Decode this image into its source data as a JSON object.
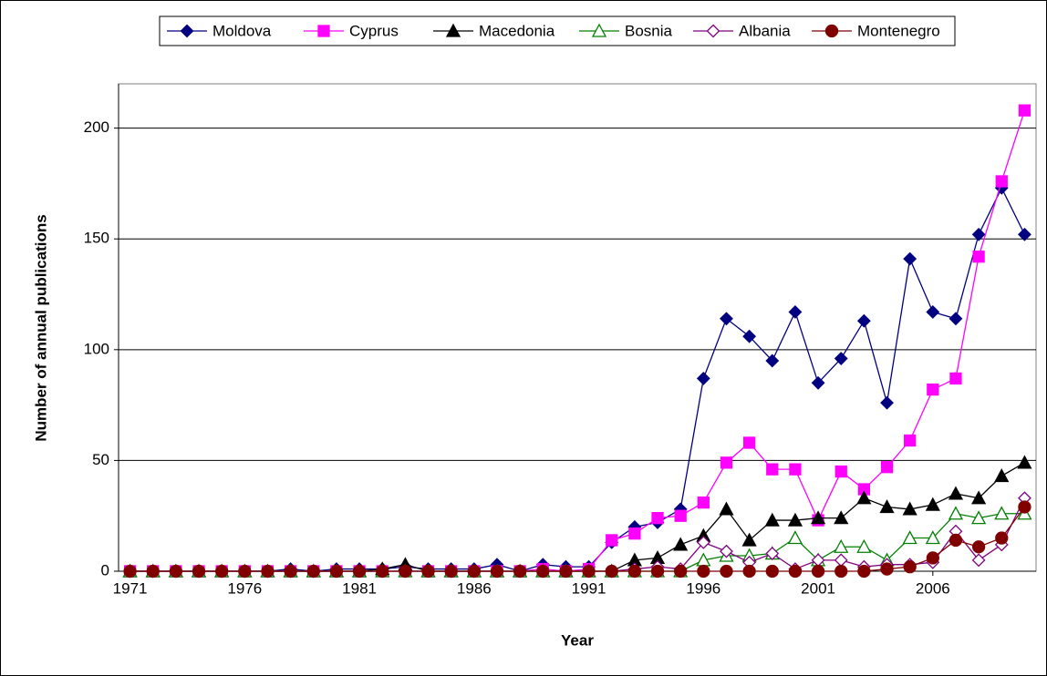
{
  "chart_data": {
    "type": "line",
    "x": [
      1971,
      1972,
      1973,
      1974,
      1975,
      1976,
      1977,
      1978,
      1979,
      1980,
      1981,
      1982,
      1983,
      1984,
      1985,
      1986,
      1987,
      1988,
      1989,
      1990,
      1991,
      1992,
      1993,
      1994,
      1995,
      1996,
      1997,
      1998,
      1999,
      2000,
      2001,
      2002,
      2003,
      2004,
      2005,
      2006,
      2007,
      2008,
      2009,
      2010
    ],
    "xlim": [
      1970.5,
      2010.5
    ],
    "xticks": [
      1971,
      1976,
      1981,
      1986,
      1991,
      1996,
      2001,
      2006
    ],
    "ylim": [
      0,
      220
    ],
    "yticks": [
      0,
      50,
      100,
      150,
      200
    ],
    "grid": true,
    "legend": "top",
    "xlabel": "Year",
    "ylabel": "Number of annual publications",
    "series": [
      {
        "name": "Moldova",
        "color": "#000080",
        "marker": "diamond",
        "filled": true,
        "values": [
          0,
          0,
          0,
          0,
          0,
          0,
          0,
          1,
          0,
          1,
          1,
          1,
          2,
          1,
          1,
          1,
          3,
          0,
          3,
          2,
          2,
          13,
          20,
          22,
          28,
          87,
          114,
          106,
          95,
          117,
          85,
          96,
          113,
          76,
          141,
          117,
          114,
          152,
          173,
          152
        ]
      },
      {
        "name": "Cyprus",
        "color": "#ff00ff",
        "marker": "square",
        "filled": true,
        "values": [
          0,
          0,
          0,
          0,
          0,
          0,
          0,
          0,
          0,
          0,
          0,
          0,
          0,
          0,
          0,
          0,
          0,
          0,
          1,
          0,
          1,
          14,
          17,
          24,
          25,
          31,
          49,
          58,
          46,
          46,
          23,
          45,
          37,
          47,
          59,
          82,
          87,
          142,
          176,
          208
        ]
      },
      {
        "name": "Macedonia",
        "color": "#000000",
        "marker": "triangle",
        "filled": true,
        "values": [
          0,
          0,
          0,
          0,
          0,
          0,
          0,
          0,
          0,
          0,
          0,
          1,
          3,
          0,
          0,
          0,
          0,
          0,
          0,
          0,
          0,
          0,
          5,
          6,
          12,
          16,
          28,
          14,
          23,
          23,
          24,
          24,
          33,
          29,
          28,
          30,
          35,
          33,
          43,
          49
        ]
      },
      {
        "name": "Bosnia",
        "color": "#008000",
        "marker": "triangle",
        "filled": false,
        "values": [
          0,
          0,
          0,
          0,
          0,
          0,
          0,
          0,
          0,
          0,
          0,
          0,
          0,
          0,
          0,
          0,
          0,
          0,
          0,
          0,
          0,
          0,
          0,
          0,
          0,
          5,
          7,
          7,
          8,
          15,
          5,
          11,
          11,
          5,
          15,
          15,
          26,
          24,
          26,
          26
        ]
      },
      {
        "name": "Albania",
        "color": "#800080",
        "marker": "diamond",
        "filled": false,
        "values": [
          0,
          0,
          0,
          0,
          0,
          0,
          0,
          0,
          0,
          0,
          0,
          0,
          0,
          0,
          0,
          0,
          0,
          0,
          0,
          0,
          0,
          0,
          1,
          2,
          1,
          13,
          9,
          4,
          8,
          1,
          5,
          5,
          2,
          3,
          3,
          4,
          18,
          5,
          12,
          33
        ]
      },
      {
        "name": "Montenegro",
        "color": "#800000",
        "marker": "circle",
        "filled": true,
        "values": [
          0,
          0,
          0,
          0,
          0,
          0,
          0,
          0,
          0,
          0,
          0,
          0,
          0,
          0,
          0,
          0,
          0,
          0,
          0,
          0,
          0,
          0,
          0,
          0,
          0,
          0,
          0,
          0,
          0,
          0,
          0,
          0,
          0,
          1,
          2,
          6,
          14,
          11,
          15,
          29
        ]
      }
    ]
  }
}
